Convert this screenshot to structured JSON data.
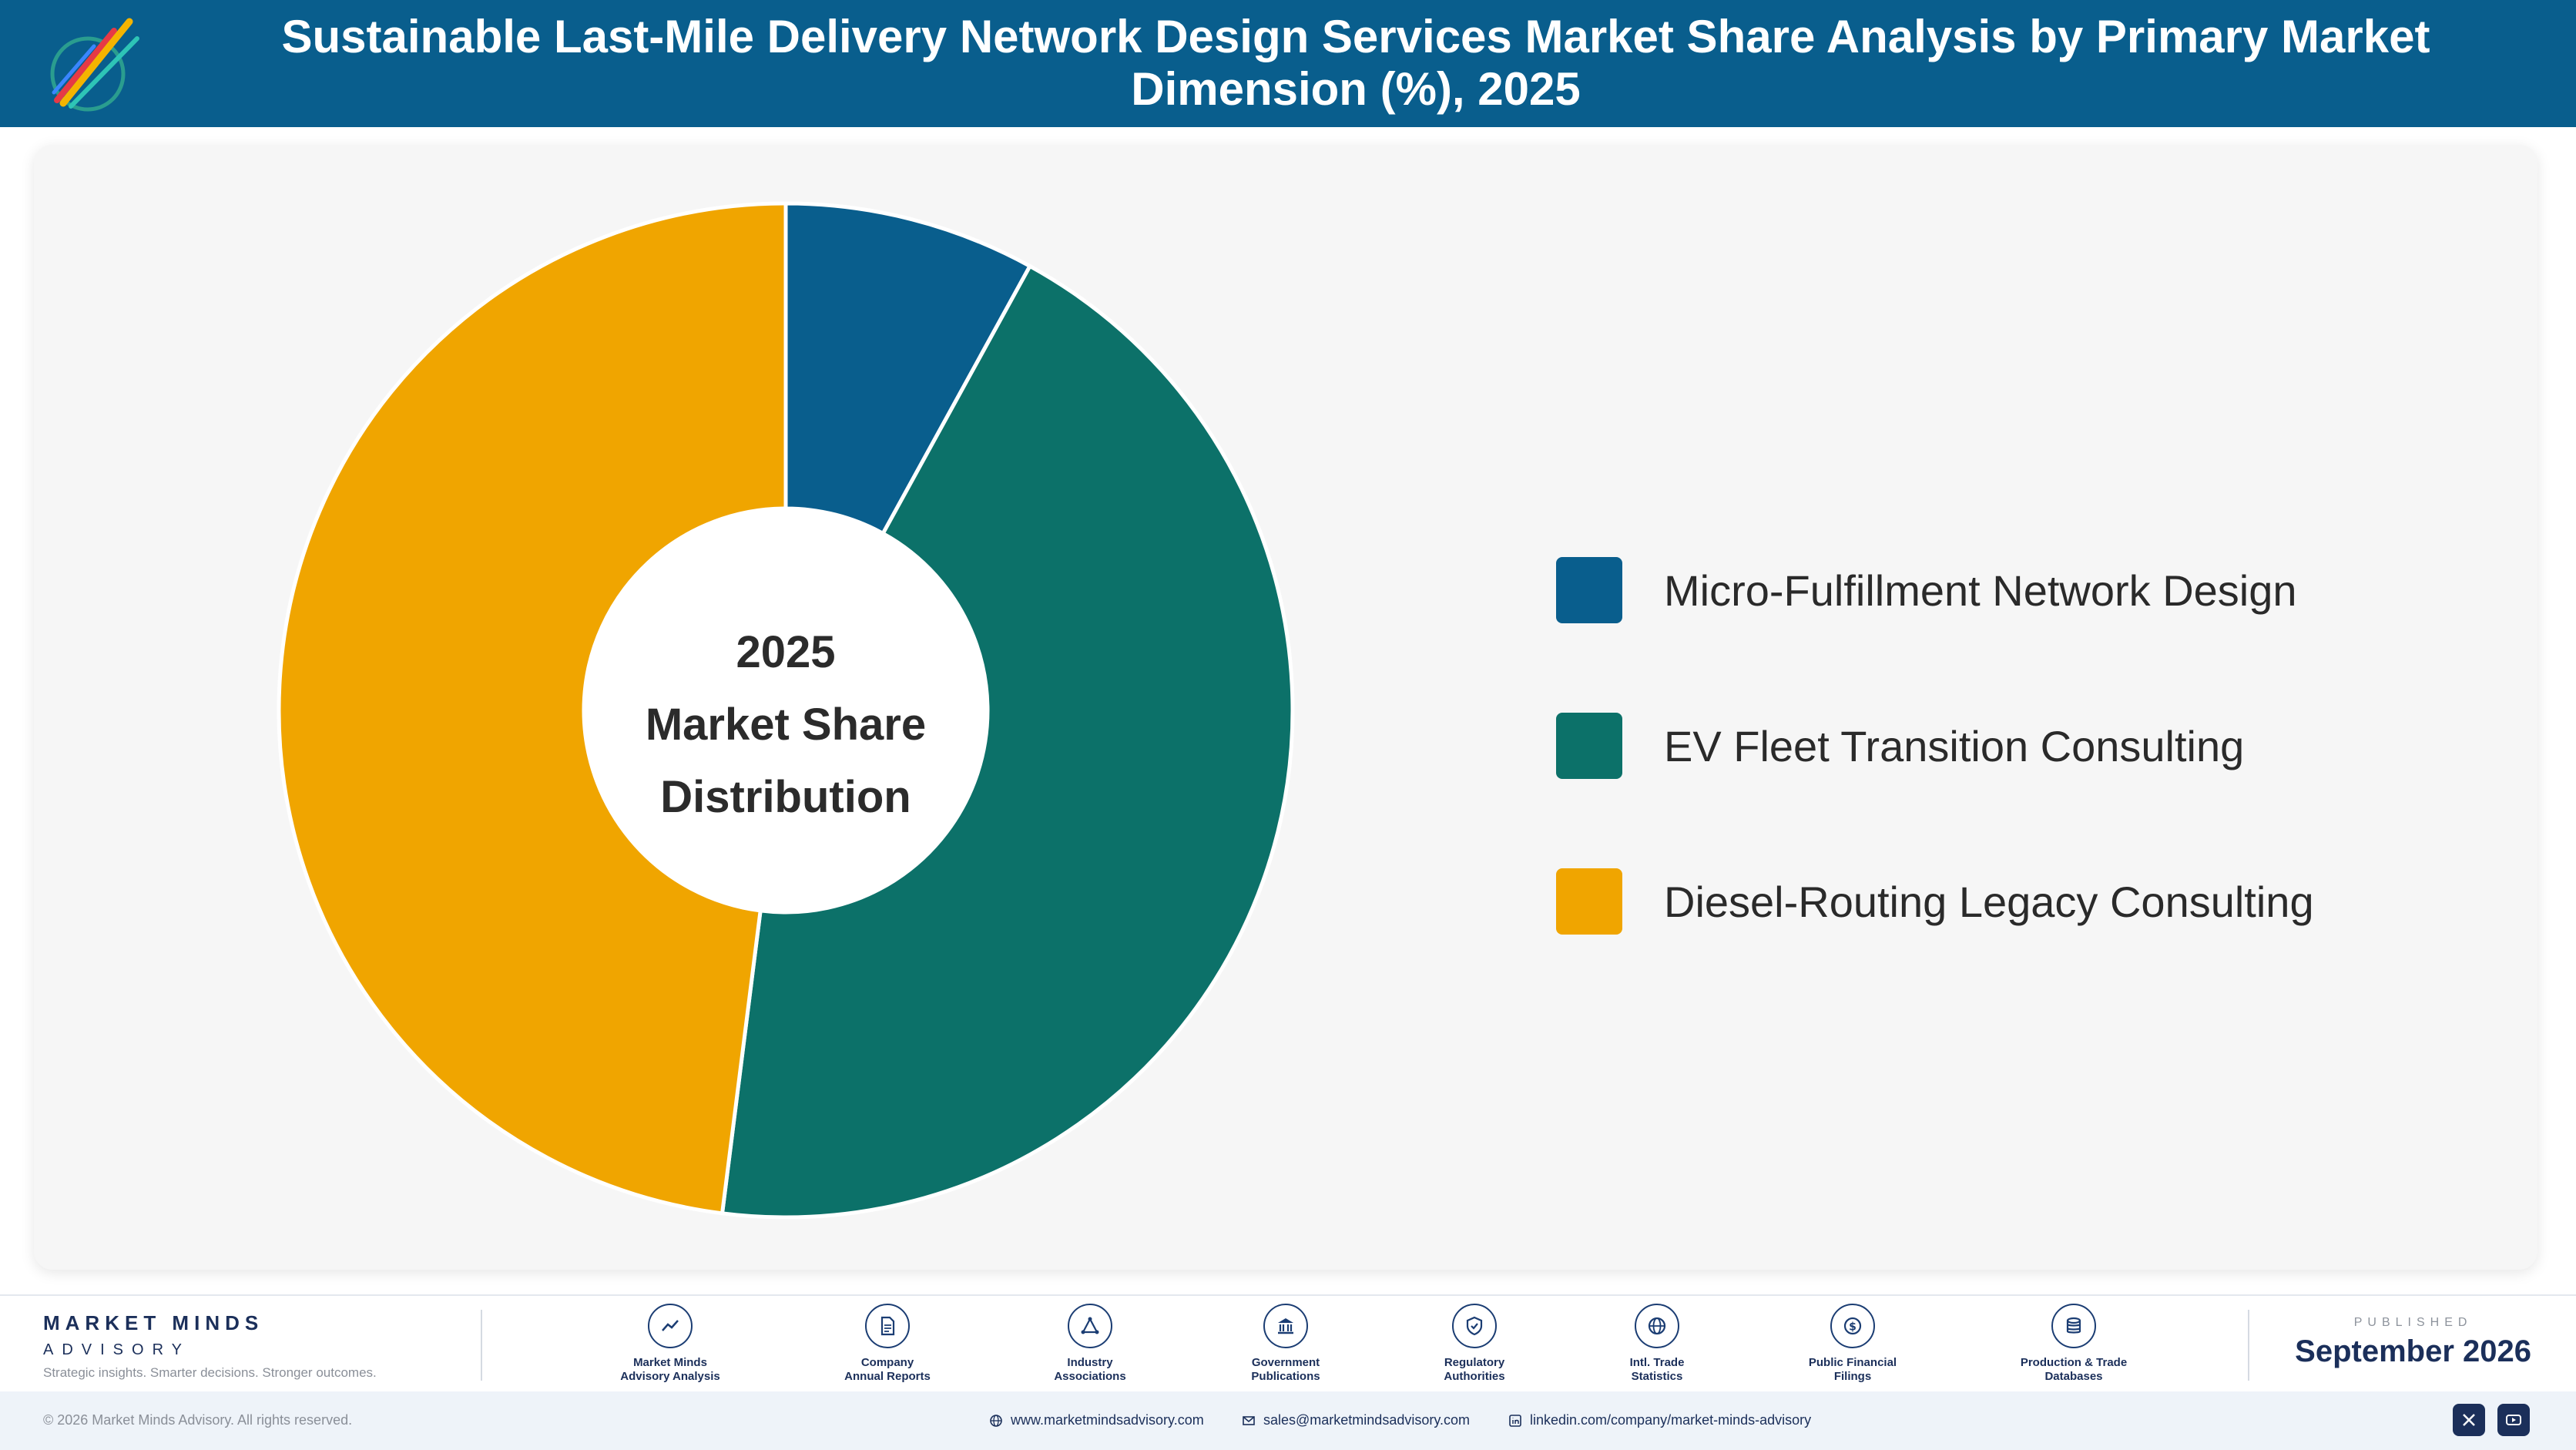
{
  "header": {
    "title": "Sustainable Last-Mile Delivery Network Design Services Market Share Analysis by Primary Market Dimension (%), 2025",
    "logo_icon": "market-minds-logo-icon"
  },
  "chart_data": {
    "type": "pie",
    "style": "donut",
    "center_label": [
      "2025",
      "Market Share",
      "Distribution"
    ],
    "categories": [
      "Micro-Fulfillment Network Design",
      "EV Fleet Transition Consulting",
      "Diesel-Routing Legacy Consulting"
    ],
    "values": [
      8,
      44,
      48
    ],
    "colors": [
      "#095e8d",
      "#0c7169",
      "#f0a500"
    ],
    "legend_position": "right"
  },
  "footer": {
    "brand_name": "MARKET MINDS",
    "brand_sub": "ADVISORY",
    "brand_tagline": "Strategic insights. Smarter decisions. Stronger outcomes.",
    "sources": [
      {
        "line1": "Market Minds",
        "line2": "Advisory Analysis",
        "icon": "trend-chart-icon"
      },
      {
        "line1": "Company",
        "line2": "Annual Reports",
        "icon": "document-icon"
      },
      {
        "line1": "Industry",
        "line2": "Associations",
        "icon": "network-icon"
      },
      {
        "line1": "Government",
        "line2": "Publications",
        "icon": "government-building-icon"
      },
      {
        "line1": "Regulatory",
        "line2": "Authorities",
        "icon": "shield-check-icon"
      },
      {
        "line1": "Intl. Trade",
        "line2": "Statistics",
        "icon": "globe-icon"
      },
      {
        "line1": "Public Financial",
        "line2": "Filings",
        "icon": "dollar-coin-icon"
      },
      {
        "line1": "Production & Trade",
        "line2": "Databases",
        "icon": "database-icon"
      }
    ],
    "published_label": "PUBLISHED",
    "published_date": "September 2026",
    "copyright": "© 2026 Market Minds Advisory. All rights reserved.",
    "website": "www.marketmindsadvisory.com",
    "email": "sales@marketmindsadvisory.com",
    "linkedin": "linkedin.com/company/market-minds-advisory"
  }
}
